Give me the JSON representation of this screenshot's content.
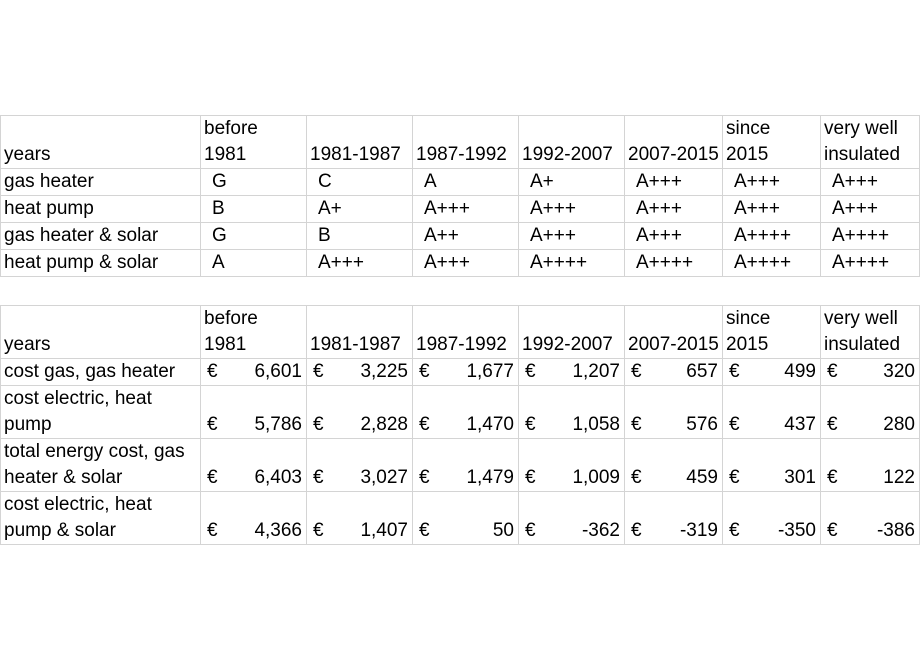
{
  "ratings_table": {
    "header": [
      "years",
      "before 1981",
      "1981-1987",
      "1987-1992",
      "1992-2007",
      "2007-2015",
      "since 2015",
      "very well insulated"
    ],
    "rows": [
      [
        "gas heater",
        "G",
        "C",
        "A",
        "A+",
        "A+++",
        "A+++",
        "A+++"
      ],
      [
        "heat pump",
        "B",
        "A+",
        "A+++",
        "A+++",
        "A+++",
        "A+++",
        "A+++"
      ],
      [
        "gas heater & solar",
        "G",
        "B",
        "A++",
        "A+++",
        "A+++",
        "A++++",
        "A++++"
      ],
      [
        "heat pump & solar",
        "A",
        "A+++",
        "A+++",
        "A++++",
        "A++++",
        "A++++",
        "A++++"
      ]
    ]
  },
  "cost_table": {
    "header": [
      "years",
      "before 1981",
      "1981-1987",
      "1987-1992",
      "1992-2007",
      "2007-2015",
      "since 2015",
      "very well insulated"
    ],
    "currency": "€",
    "rows": [
      [
        "cost gas, gas heater",
        "6,601",
        "3,225",
        "1,677",
        "1,207",
        "657",
        "499",
        "320"
      ],
      [
        "cost electric, heat pump",
        "5,786",
        "2,828",
        "1,470",
        "1,058",
        "576",
        "437",
        "280"
      ],
      [
        "total energy cost, gas heater & solar",
        "6,403",
        "3,027",
        "1,479",
        "1,009",
        "459",
        "301",
        "122"
      ],
      [
        "cost electric, heat pump & solar",
        "4,366",
        "1,407",
        "50",
        "-362",
        "-319",
        "-350",
        "-386"
      ]
    ]
  }
}
